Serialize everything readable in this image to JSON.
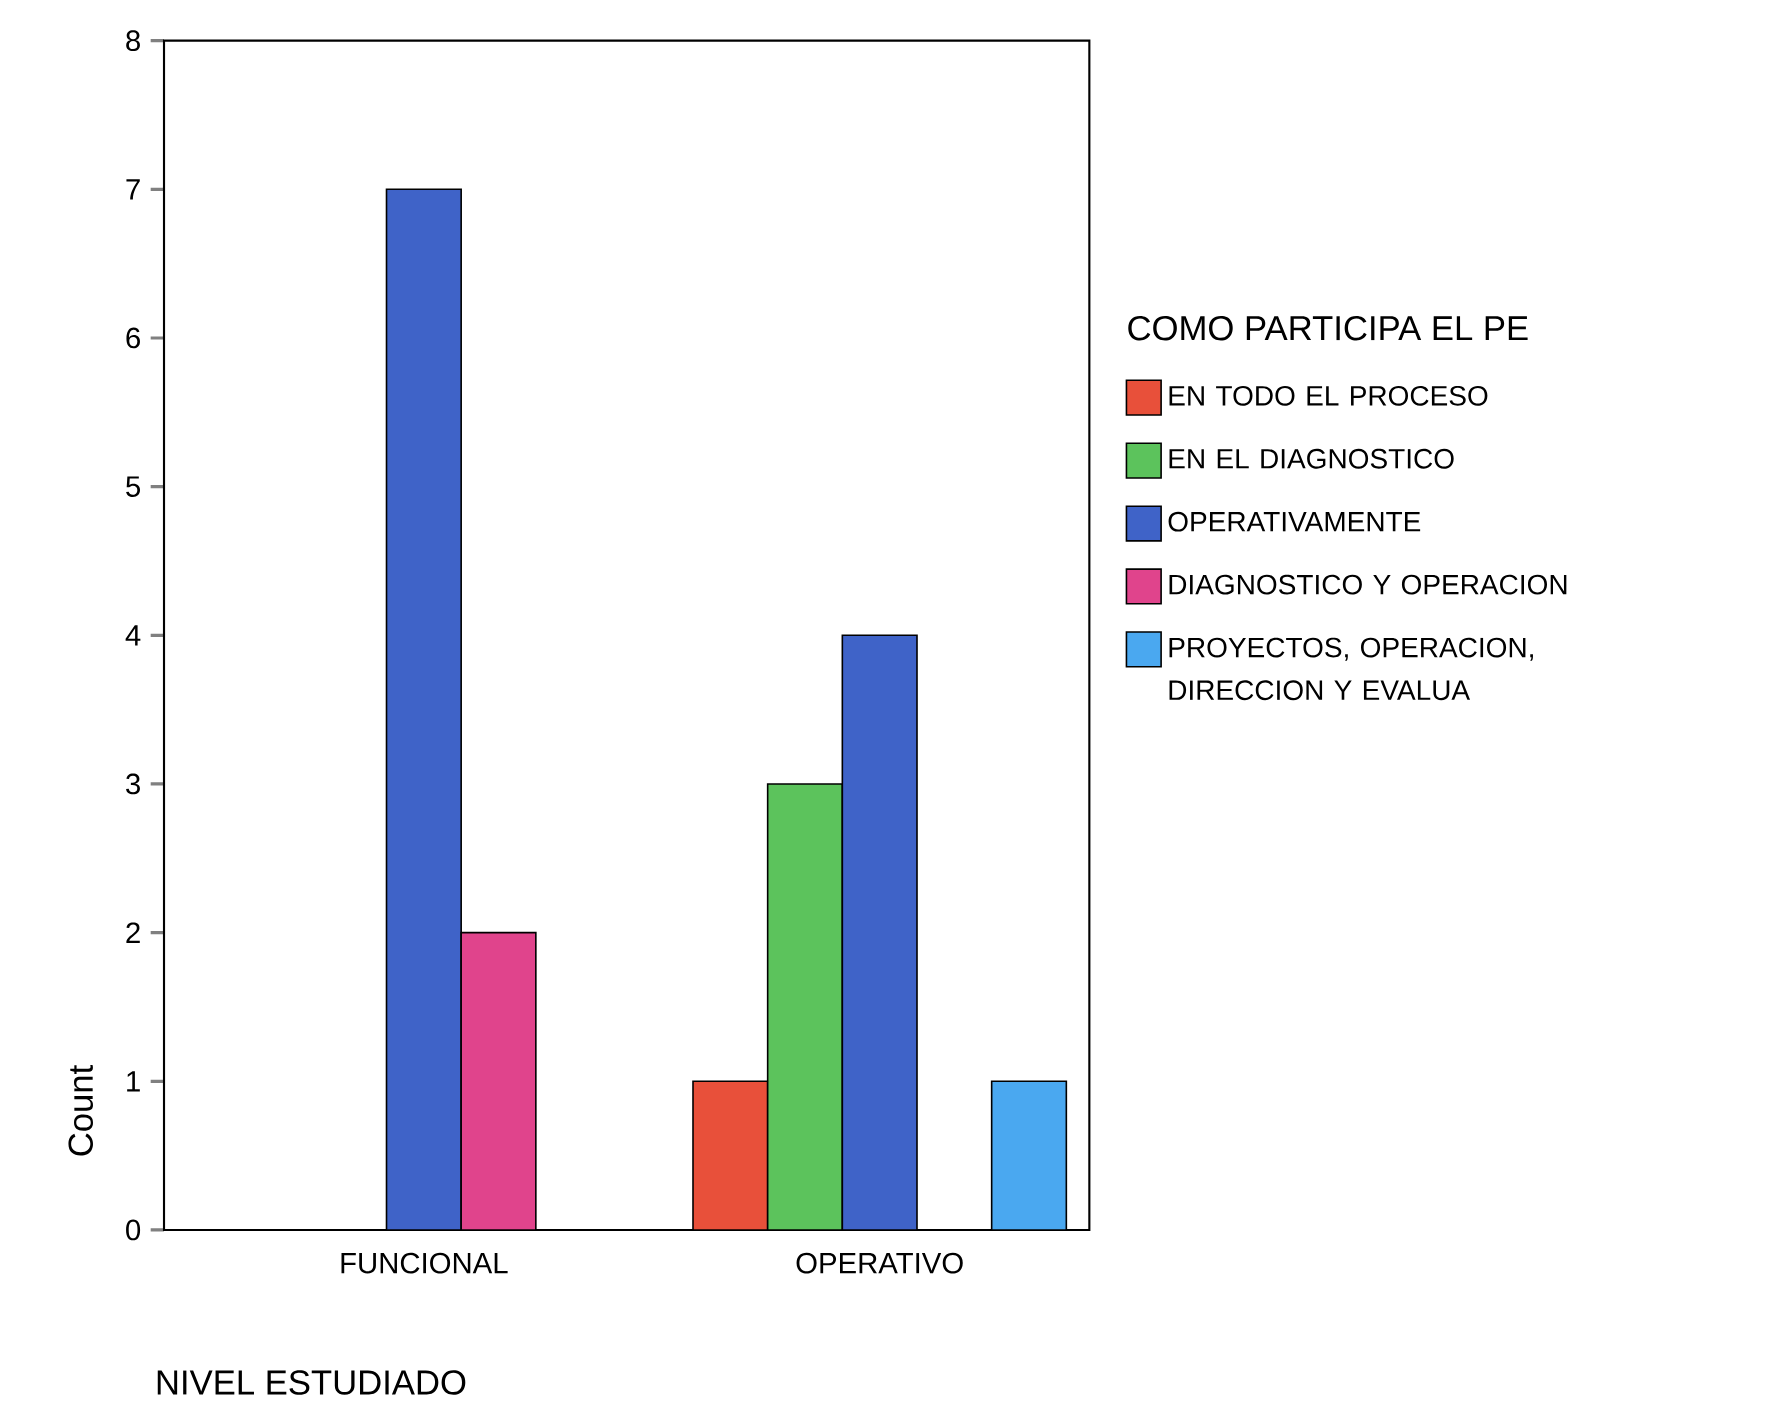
{
  "chart_data": {
    "type": "bar",
    "xlabel": "NIVEL ESTUDIADO",
    "ylabel": "Count",
    "legend_title": "COMO PARTICIPA EL PE",
    "categories": [
      "FUNCIONAL",
      "OPERATIVO"
    ],
    "series": [
      {
        "name": "EN TODO EL PROCESO",
        "color": "#e8503a",
        "values": [
          null,
          1
        ]
      },
      {
        "name": "EN EL DIAGNOSTICO",
        "color": "#5cc35c",
        "values": [
          null,
          3
        ]
      },
      {
        "name": "OPERATIVAMENTE",
        "color": "#3f63c8",
        "values": [
          7,
          4
        ]
      },
      {
        "name": "DIAGNOSTICO Y OPERACION",
        "color": "#e0448c",
        "values": [
          2,
          null
        ]
      },
      {
        "name": "PROYECTOS, OPERACION, DIRECCION Y EVALUA",
        "color": "#4aa8f0",
        "values": [
          null,
          1
        ]
      }
    ],
    "ylim": [
      0,
      8
    ],
    "yticks": [
      0,
      1,
      2,
      3,
      4,
      5,
      6,
      7,
      8
    ],
    "grid": false,
    "legend": "right"
  }
}
